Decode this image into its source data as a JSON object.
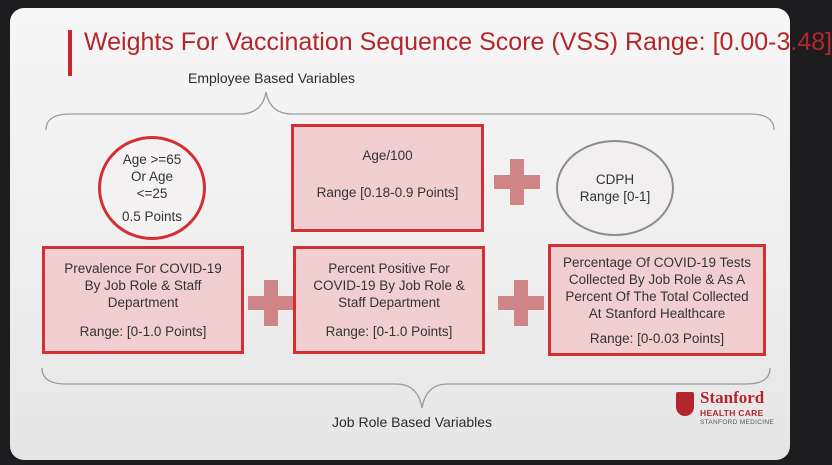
{
  "title": "Weights For Vaccination Sequence Score (VSS) Range: [0.00-3.48]",
  "employee_label": "Employee Based Variables",
  "job_label": "Job Role Based Variables",
  "age_circle": {
    "line1": "Age >=65",
    "line2": "Or Age",
    "line3": "<=25",
    "points": "0.5 Points"
  },
  "age100": {
    "label": "Age/100",
    "range": "Range [0.18-0.9 Points]"
  },
  "cdph": {
    "label": "CDPH",
    "range": "Range [0-1]"
  },
  "prevalence": {
    "line1": "Prevalence For COVID-19",
    "line2": "By Job Role & Staff",
    "line3": "Department",
    "range": "Range: [0-1.0 Points]"
  },
  "percent_positive": {
    "line1": "Percent Positive For",
    "line2": "COVID-19 By Job Role &",
    "line3": "Staff Department",
    "range": "Range: [0-1.0 Points]"
  },
  "tests_collected": {
    "line1": "Percentage Of COVID-19 Tests",
    "line2": "Collected By Job Role & As  A",
    "line3": "Percent Of The Total Collected",
    "line4": "At Stanford Healthcare",
    "range": "Range: [0-0.03 Points]"
  },
  "logo": {
    "name": "Stanford",
    "sub": "HEALTH CARE",
    "sub2": "STANFORD MEDICINE"
  },
  "colors": {
    "accent": "#c8262c",
    "box_fill": "#f1cfd0",
    "plus": "#cf8585"
  }
}
